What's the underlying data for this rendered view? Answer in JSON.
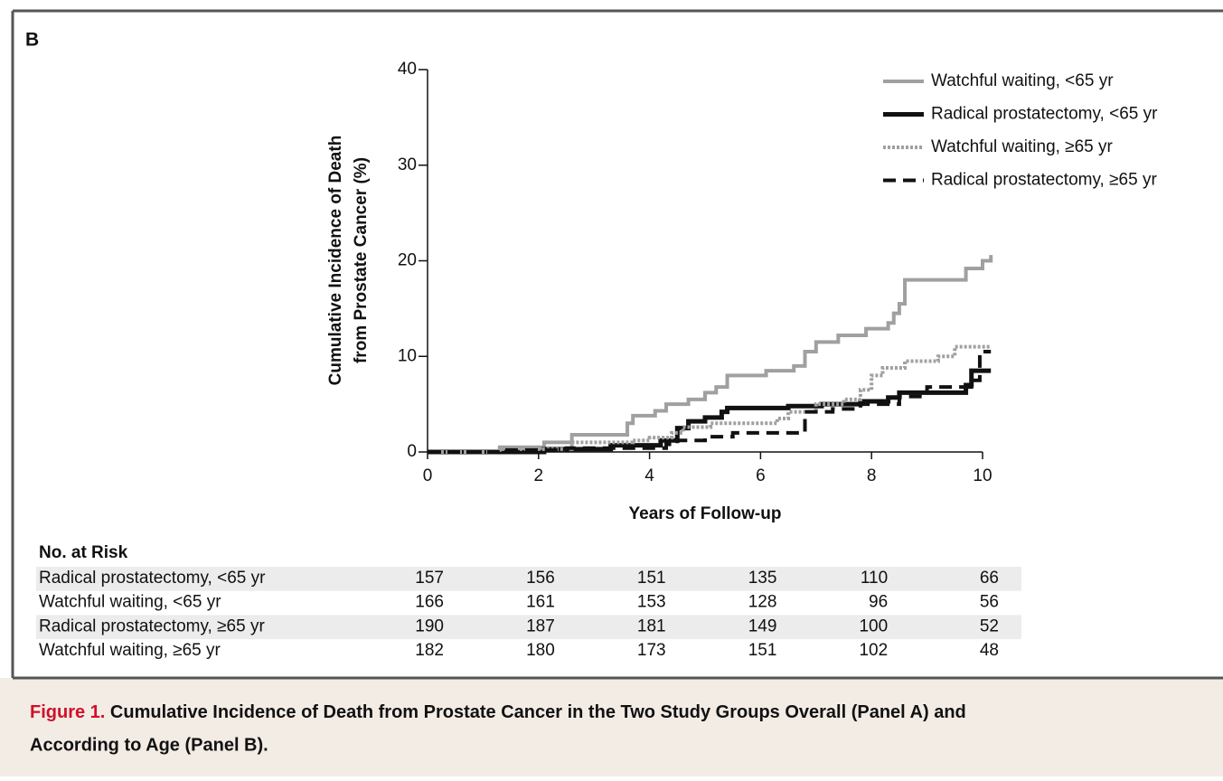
{
  "chart_data": {
    "type": "step",
    "panel_label": "B",
    "xlabel": "Years of Follow-up",
    "ylabel": [
      "Cumulative Incidence of Death",
      "from Prostate Cancer (%)"
    ],
    "xlim": [
      0,
      10
    ],
    "xticks": [
      0,
      2,
      4,
      6,
      8,
      10
    ],
    "ylim": [
      0,
      40
    ],
    "yticks": [
      0,
      10,
      20,
      30,
      40
    ],
    "legend": "upper right",
    "series": [
      {
        "name": "Watchful waiting, <65 yr",
        "color": "#a0a0a0",
        "style": "solid",
        "x": [
          0,
          1.3,
          2.1,
          2.6,
          3.6,
          3.7,
          4.1,
          4.3,
          4.7,
          5.0,
          5.2,
          5.4,
          6.1,
          6.6,
          6.8,
          7.0,
          7.4,
          7.9,
          8.3,
          8.4,
          8.5,
          8.6,
          9.7,
          10.0,
          10.15
        ],
        "values": [
          0,
          0.5,
          1.0,
          1.8,
          3.0,
          3.8,
          4.3,
          5.0,
          5.5,
          6.2,
          6.8,
          8.0,
          8.5,
          9.0,
          10.5,
          11.5,
          12.2,
          12.9,
          13.5,
          14.5,
          15.5,
          18.0,
          19.2,
          20.0,
          20.6
        ]
      },
      {
        "name": "Radical prostatectomy, <65 yr",
        "color": "#111111",
        "style": "solid",
        "x": [
          0,
          2.1,
          3.3,
          4.2,
          4.5,
          4.7,
          5.0,
          5.3,
          5.4,
          6.5,
          7.1,
          7.8,
          8.3,
          8.5,
          9.7,
          9.8,
          10.15
        ],
        "values": [
          0,
          0.3,
          0.7,
          1.2,
          2.5,
          3.2,
          3.6,
          4.2,
          4.6,
          4.8,
          5.0,
          5.3,
          5.7,
          6.2,
          7.0,
          8.5,
          8.5
        ]
      },
      {
        "name": "Watchful waiting, ≥65 yr",
        "color": "#a0a0a0",
        "style": "dotted",
        "x": [
          0,
          1.3,
          2.6,
          3.7,
          4.0,
          4.4,
          4.6,
          5.1,
          6.3,
          6.5,
          7.0,
          7.5,
          7.8,
          8.0,
          8.2,
          8.6,
          9.2,
          9.5,
          10.15
        ],
        "values": [
          0,
          0.3,
          1.0,
          1.2,
          1.5,
          2.0,
          2.6,
          3.0,
          3.5,
          4.2,
          5.0,
          5.5,
          6.5,
          8.0,
          8.8,
          9.5,
          10.0,
          11.0,
          11.0
        ]
      },
      {
        "name": "Radical prostatectomy, ≥65 yr",
        "color": "#111111",
        "style": "dashed",
        "x": [
          0,
          1.3,
          2.5,
          4.3,
          4.5,
          5.0,
          5.5,
          6.8,
          7.3,
          7.8,
          8.5,
          9.0,
          9.8,
          9.95,
          10.15
        ],
        "values": [
          0,
          0.2,
          0.4,
          0.8,
          1.2,
          1.6,
          2.0,
          4.2,
          4.5,
          5.0,
          5.8,
          6.8,
          7.5,
          10.5,
          10.5
        ]
      }
    ],
    "risk_table": {
      "title": "No. at Risk",
      "rows": [
        {
          "label": "Radical prostatectomy, <65 yr",
          "values": [
            157,
            156,
            151,
            135,
            110,
            66
          ]
        },
        {
          "label": "Watchful waiting, <65 yr",
          "values": [
            166,
            161,
            153,
            128,
            96,
            56
          ]
        },
        {
          "label": "Radical prostatectomy, ≥65 yr",
          "values": [
            190,
            187,
            181,
            149,
            100,
            52
          ]
        },
        {
          "label": "Watchful waiting, ≥65 yr",
          "values": [
            182,
            180,
            173,
            151,
            102,
            48
          ]
        }
      ]
    }
  },
  "caption": {
    "label": "Figure 1.",
    "lines": [
      "Cumulative Incidence of Death from Prostate Cancer in the Two Study Groups Overall (Panel A) and",
      "According to Age (Panel B)."
    ]
  }
}
